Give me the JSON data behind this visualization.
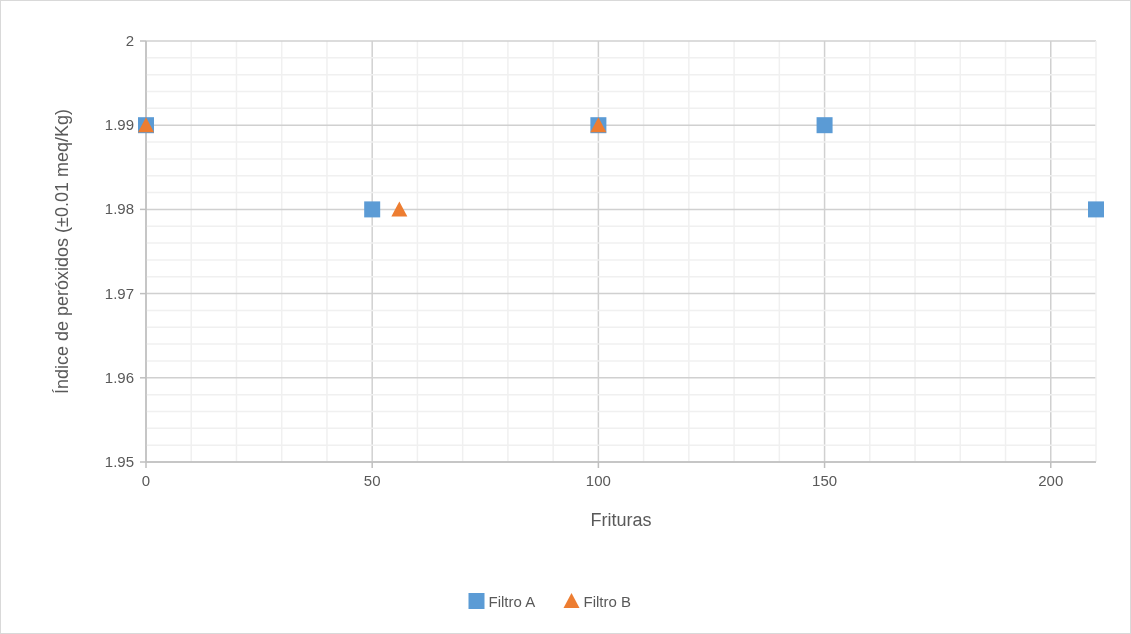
{
  "chart_data": {
    "type": "scatter",
    "xlabel": "Frituras",
    "ylabel": "Índice de peróxidos (±0.01 meq/Kg)",
    "xlim": [
      0,
      210
    ],
    "ylim": [
      1.95,
      2
    ],
    "xticks": [
      0,
      {
        "value": 10,
        "label": null
      },
      {
        "value": 20,
        "label": null
      },
      {
        "value": 30,
        "label": null
      },
      {
        "value": 40,
        "label": null
      },
      50,
      {
        "value": 60,
        "label": null
      },
      {
        "value": 70,
        "label": null
      },
      {
        "value": 80,
        "label": null
      },
      {
        "value": 90,
        "label": null
      },
      100,
      {
        "value": 110,
        "label": null
      },
      {
        "value": 120,
        "label": null
      },
      {
        "value": 130,
        "label": null
      },
      {
        "value": 140,
        "label": null
      },
      150,
      {
        "value": 160,
        "label": null
      },
      {
        "value": 170,
        "label": null
      },
      {
        "value": 180,
        "label": null
      },
      {
        "value": 190,
        "label": null
      },
      200
    ],
    "yticks": [
      1.95,
      {
        "value": 1.952,
        "label": null
      },
      {
        "value": 1.954,
        "label": null
      },
      {
        "value": 1.956,
        "label": null
      },
      {
        "value": 1.958,
        "label": null
      },
      1.96,
      {
        "value": 1.962,
        "label": null
      },
      {
        "value": 1.964,
        "label": null
      },
      {
        "value": 1.966,
        "label": null
      },
      {
        "value": 1.968,
        "label": null
      },
      1.97,
      {
        "value": 1.972,
        "label": null
      },
      {
        "value": 1.974,
        "label": null
      },
      {
        "value": 1.976,
        "label": null
      },
      {
        "value": 1.978,
        "label": null
      },
      1.98,
      {
        "value": 1.982,
        "label": null
      },
      {
        "value": 1.984,
        "label": null
      },
      {
        "value": 1.986,
        "label": null
      },
      {
        "value": 1.988,
        "label": null
      },
      1.99,
      {
        "value": 1.992,
        "label": null
      },
      {
        "value": 1.994,
        "label": null
      },
      {
        "value": 1.996,
        "label": null
      },
      {
        "value": 1.998,
        "label": null
      },
      2
    ],
    "grid": true,
    "legend": "bottom",
    "series": [
      {
        "name": "Filtro A",
        "color": "#5b9bd5",
        "marker": "square",
        "x": [
          0,
          50,
          100,
          150,
          210
        ],
        "values": [
          1.99,
          1.98,
          1.99,
          1.99,
          1.98
        ]
      },
      {
        "name": "Filtro B",
        "color": "#ed7d31",
        "marker": "triangle",
        "x": [
          0,
          56,
          100
        ],
        "values": [
          1.99,
          1.98,
          1.99
        ]
      }
    ]
  }
}
